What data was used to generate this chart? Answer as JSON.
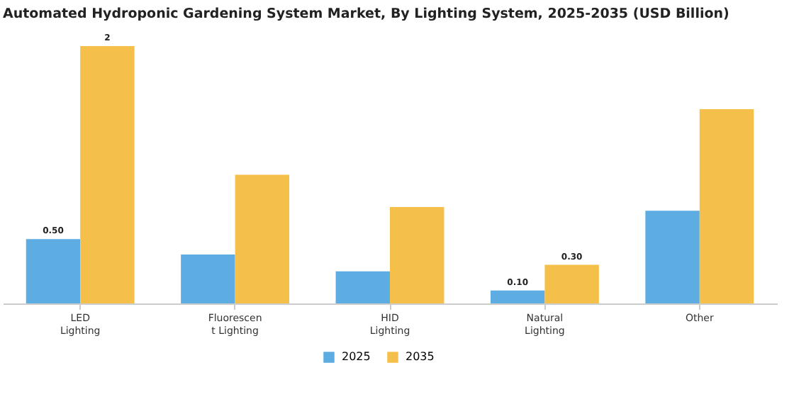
{
  "chart_data": {
    "type": "bar",
    "title": "Automated Hydroponic Gardening System Market, By Lighting System, 2025-2035 (USD Billion)",
    "categories": [
      "LED Lighting",
      "Fluorescent Lighting",
      "HID Lighting",
      "Natural Lighting",
      "Other"
    ],
    "series": [
      {
        "name": "2025",
        "color": "#5dade2",
        "values": [
          0.5,
          0.38,
          0.25,
          0.1,
          0.72
        ],
        "value_labels": [
          "0.50",
          null,
          null,
          "0.10",
          null
        ]
      },
      {
        "name": "2035",
        "color": "#f5c04a",
        "values": [
          2,
          1.0,
          0.75,
          0.3,
          1.51
        ],
        "value_labels": [
          "2",
          null,
          null,
          "0.30",
          null
        ]
      }
    ],
    "legend": "bottom",
    "grid": false,
    "tick_labels": "x"
  }
}
